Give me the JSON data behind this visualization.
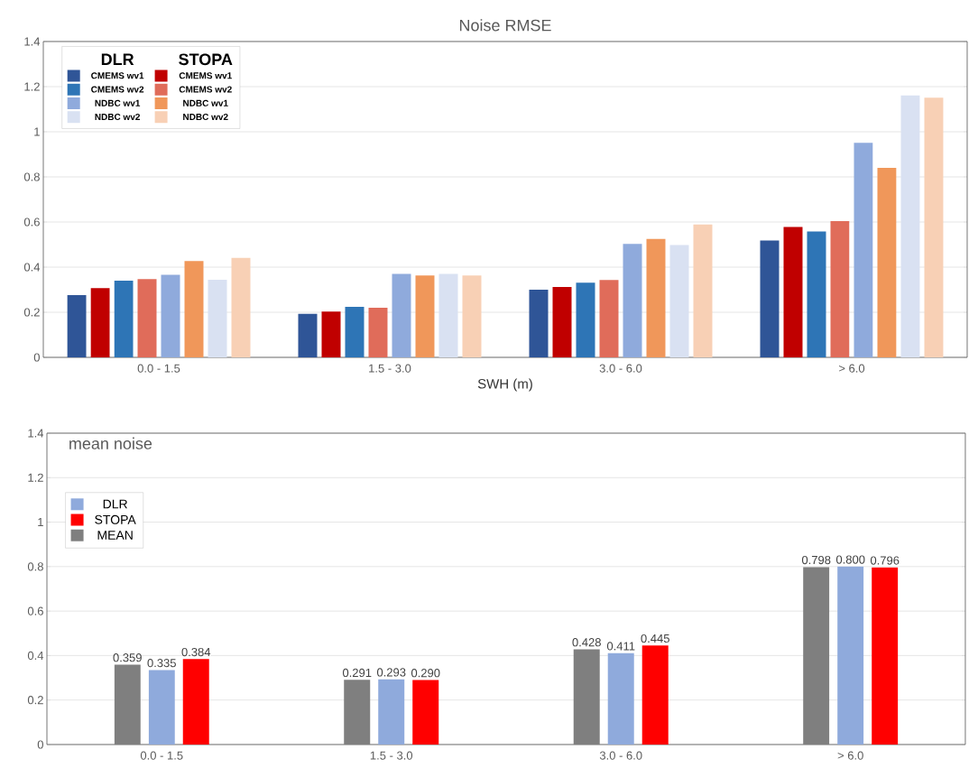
{
  "chart_data": [
    {
      "type": "bar",
      "title": "Noise RMSE",
      "xlabel": "SWH (m)",
      "categories": [
        "0.0 - 1.5",
        "1.5 - 3.0",
        "3.0 - 6.0",
        "> 6.0"
      ],
      "series": [
        {
          "name": "CMEMS wv1",
          "color": "#2f5597",
          "values": [
            0.276,
            0.193,
            0.3,
            0.518
          ]
        },
        {
          "name": "CMEMS wv1",
          "color": "#c00000",
          "values": [
            0.307,
            0.203,
            0.312,
            0.578
          ]
        },
        {
          "name": "CMEMS wv2",
          "color": "#2e75b6",
          "values": [
            0.34,
            0.224,
            0.331,
            0.558
          ]
        },
        {
          "name": "CMEMS wv2",
          "color": "#e06c5a",
          "values": [
            0.347,
            0.22,
            0.343,
            0.604
          ]
        },
        {
          "name": "NDBC wv1",
          "color": "#8faadc",
          "values": [
            0.366,
            0.37,
            0.503,
            0.951
          ]
        },
        {
          "name": "NDBC wv1",
          "color": "#f0975a",
          "values": [
            0.427,
            0.363,
            0.525,
            0.84
          ]
        },
        {
          "name": "NDBC wv2",
          "color": "#d9e1f2",
          "values": [
            0.344,
            0.37,
            0.498,
            1.162
          ]
        },
        {
          "name": "NDBC wv2",
          "color": "#f8d0b5",
          "values": [
            0.441,
            0.363,
            0.589,
            1.151
          ]
        }
      ],
      "annotations": [
        "DLR",
        "STOPA"
      ],
      "ylim": [
        0,
        1.4
      ],
      "yticks": [
        0,
        0.2,
        0.4,
        0.6,
        0.8,
        1,
        1.2,
        1.4
      ],
      "grid": "y",
      "legend": "top left"
    },
    {
      "type": "bar",
      "title": "mean noise",
      "categories": [
        "0.0 - 1.5",
        "1.5 - 3.0",
        "3.0 - 6.0",
        "> 6.0"
      ],
      "series": [
        {
          "name": "MEAN",
          "color": "#7f7f7f",
          "values": [
            0.359,
            0.291,
            0.428,
            0.798
          ],
          "value_labels": [
            "0.359",
            "0.291",
            "0.428",
            "0.798"
          ]
        },
        {
          "name": "DLR",
          "color": "#8faadc",
          "values": [
            0.335,
            0.293,
            0.411,
            0.8
          ],
          "value_labels": [
            "0.335",
            "0.293",
            "0.411",
            "0.800"
          ]
        },
        {
          "name": "STOPA",
          "color": "#ff0000",
          "values": [
            0.384,
            0.29,
            0.445,
            0.796
          ],
          "value_labels": [
            "0.384",
            "0.290",
            "0.445",
            "0.796"
          ]
        }
      ],
      "ylim": [
        0,
        1.4
      ],
      "yticks": [
        0,
        0.2,
        0.4,
        0.6,
        0.8,
        1,
        1.2,
        1.4
      ],
      "grid": "y",
      "legend": "top left"
    }
  ]
}
